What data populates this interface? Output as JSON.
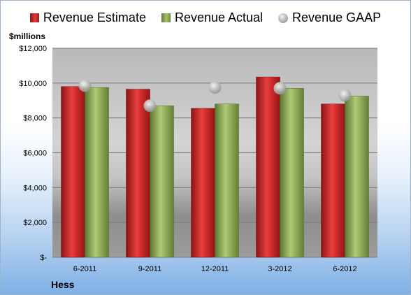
{
  "legend": {
    "estimate": "Revenue Estimate",
    "actual": "Revenue Actual",
    "gaap": "Revenue GAAP"
  },
  "unit_label": "$millions",
  "company": "Hess",
  "colors": {
    "estimate": "#c8262a",
    "actual": "#8aa456",
    "gaap": "#b0b0b0"
  },
  "chart_data": {
    "type": "bar",
    "categories": [
      "6-2011",
      "9-2011",
      "12-2011",
      "3-2012",
      "6-2012"
    ],
    "series": [
      {
        "name": "Revenue Estimate",
        "values": [
          9800,
          9650,
          8550,
          10350,
          8800
        ]
      },
      {
        "name": "Revenue Actual",
        "values": [
          9750,
          8700,
          8800,
          9700,
          9250
        ]
      },
      {
        "name": "Revenue GAAP",
        "values": [
          9850,
          8700,
          9750,
          9700,
          9300
        ],
        "style": "marker"
      }
    ],
    "ylabel": "$millions",
    "ylim": [
      0,
      12000
    ],
    "yticks": [
      0,
      2000,
      4000,
      6000,
      8000,
      10000,
      12000
    ],
    "ytick_labels": [
      "$-",
      "$2,000",
      "$4,000",
      "$6,000",
      "$8,000",
      "$10,000",
      "$12,000"
    ],
    "grid": true,
    "legend_position": "top"
  }
}
